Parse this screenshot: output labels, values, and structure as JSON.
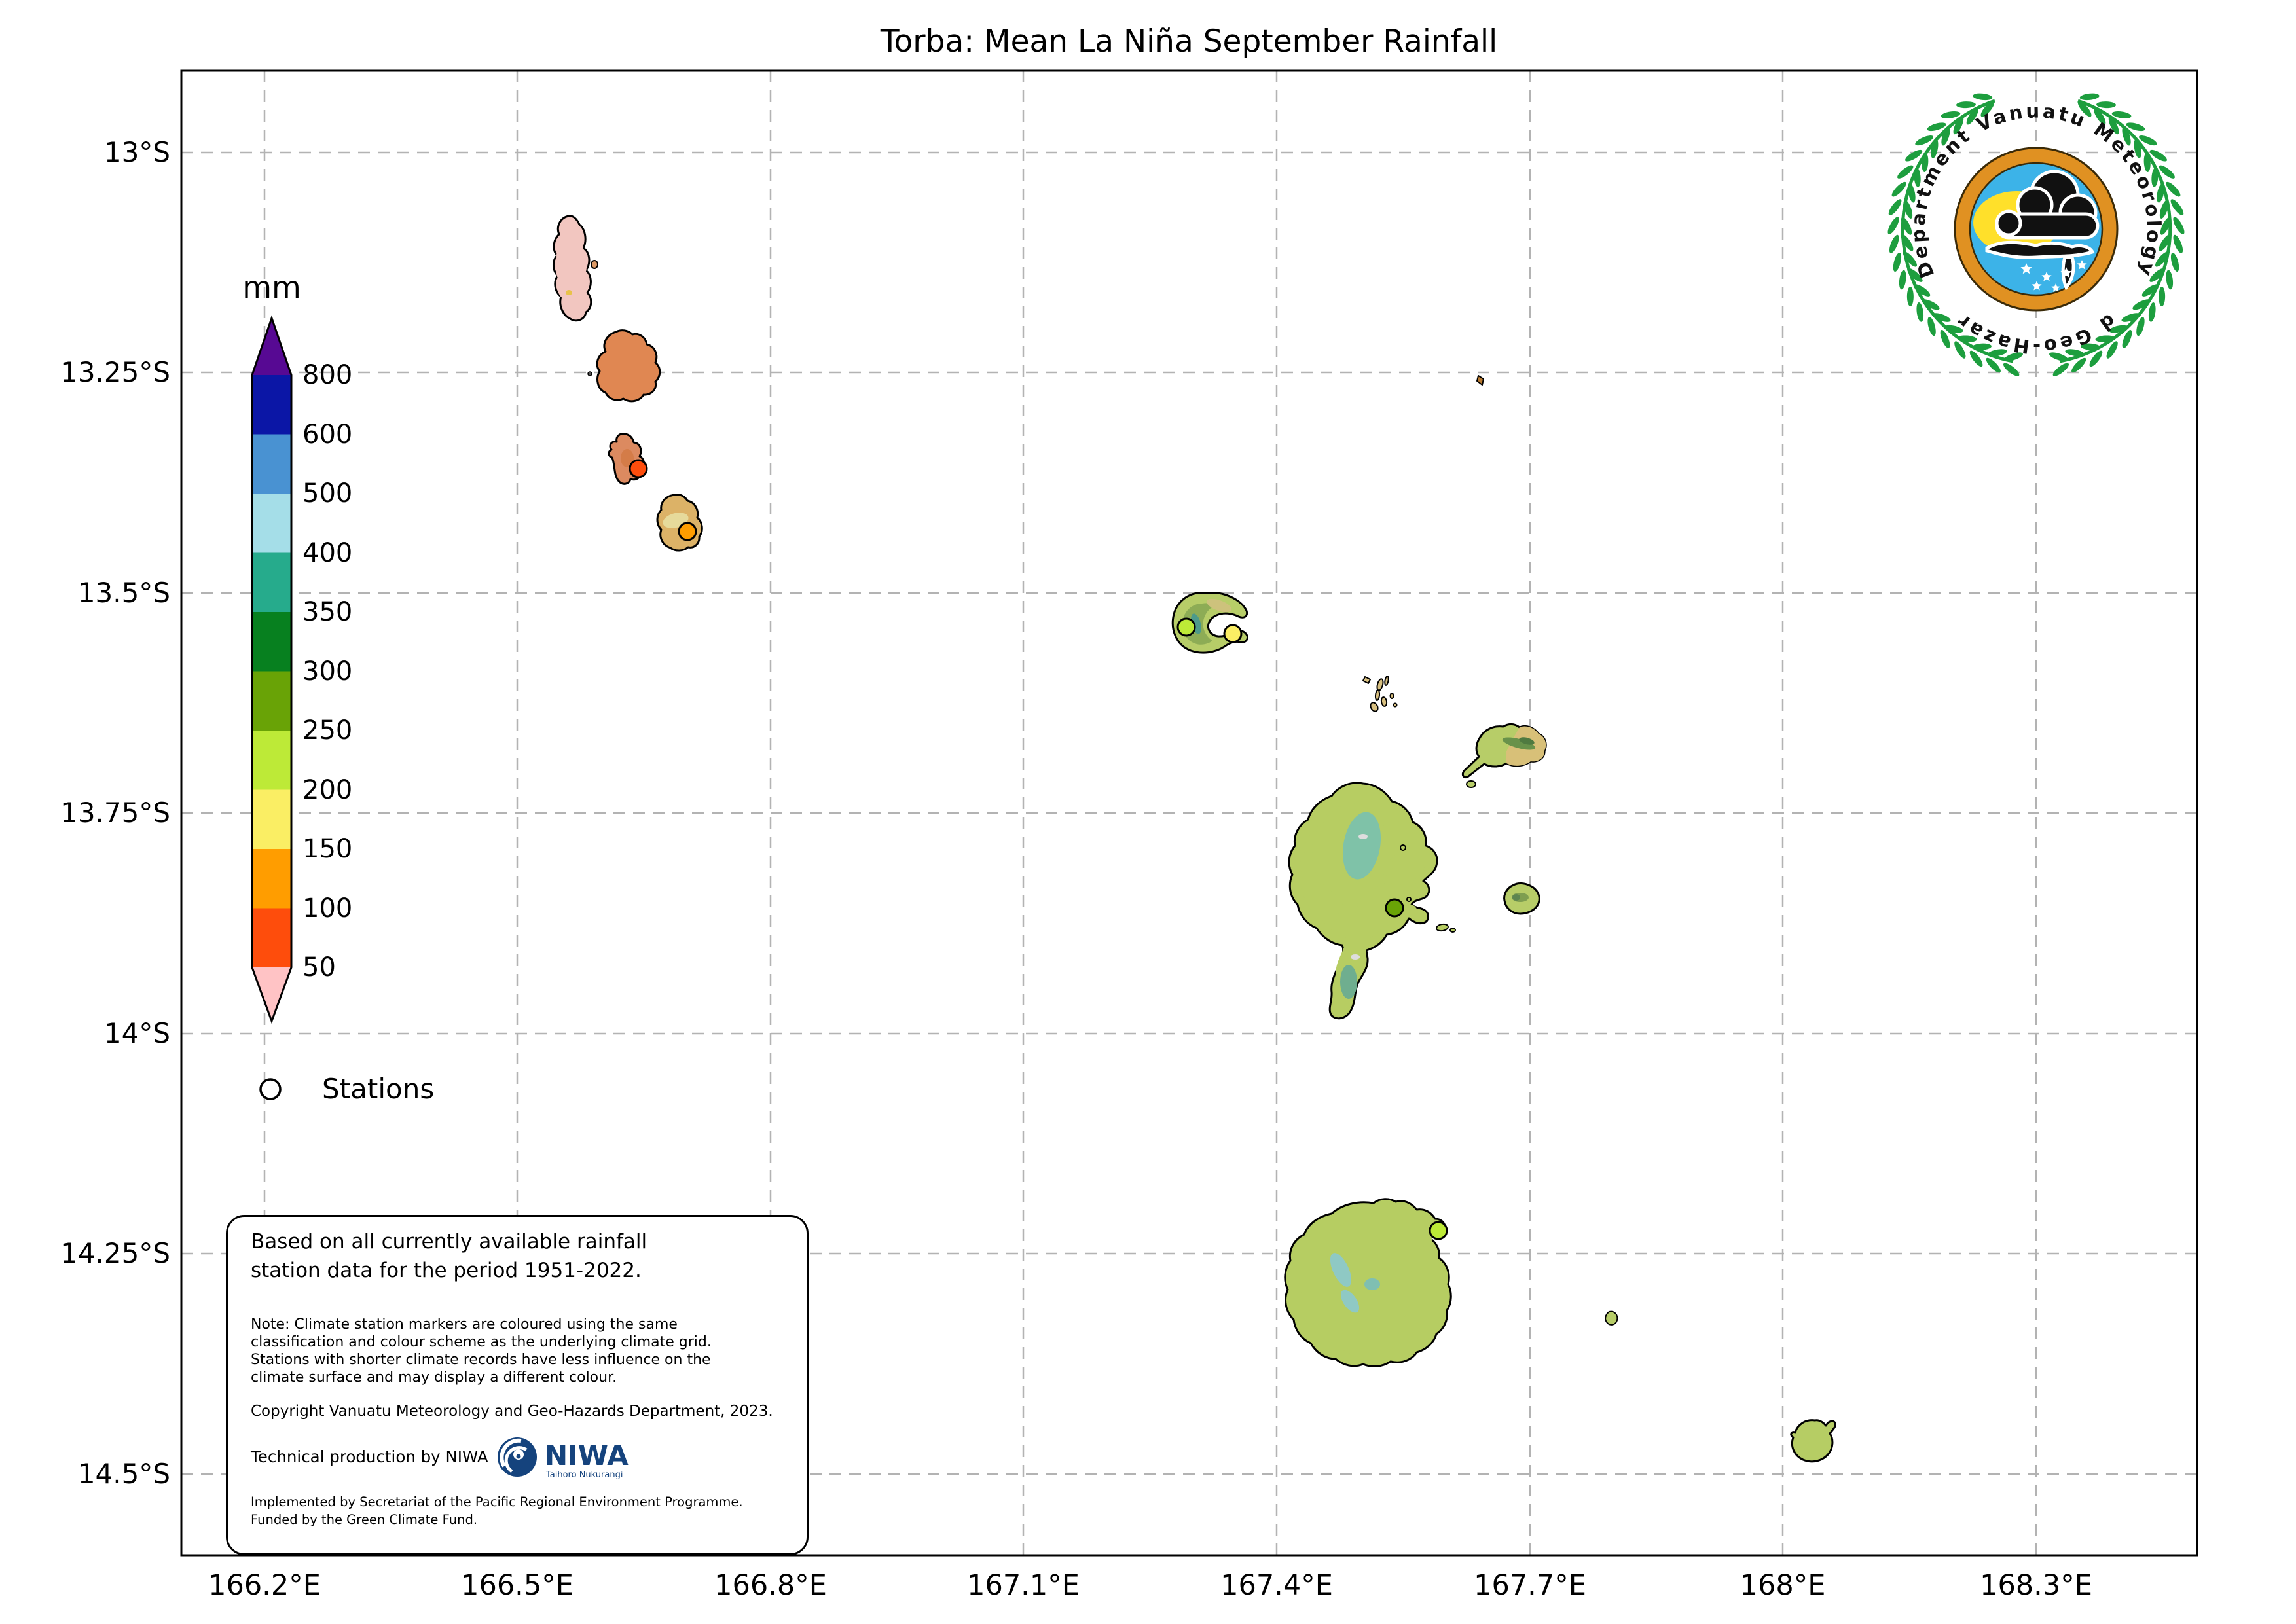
{
  "title": "Torba: Mean La Niña September Rainfall",
  "axes": {
    "lon_ticks": [
      "166.2°E",
      "166.5°E",
      "166.8°E",
      "167.1°E",
      "167.4°E",
      "167.7°E",
      "168°E",
      "168.3°E"
    ],
    "lat_ticks": [
      "13°S",
      "13.25°S",
      "13.5°S",
      "13.75°S",
      "14°S",
      "14.25°S",
      "14.5°S"
    ]
  },
  "legend": {
    "unit": "mm",
    "tick_labels": [
      "800",
      "600",
      "500",
      "400",
      "350",
      "300",
      "250",
      "200",
      "150",
      "100",
      "50"
    ],
    "colors": [
      "#570993",
      "#0b16a6",
      "#4992d2",
      "#a5dee8",
      "#26ab8c",
      "#07801f",
      "#69a306",
      "#bdea37",
      "#faee64",
      "#ff9d00",
      "#fe4d0c",
      "#ffc3c5"
    ],
    "stations_label": "Stations"
  },
  "stations": [
    {
      "id": "station-torres-loh",
      "color": "#fe4d0c"
    },
    {
      "id": "station-torres-toga",
      "color": "#ff9d00"
    },
    {
      "id": "station-ureparapara-west",
      "color": "#bdea37"
    },
    {
      "id": "station-ureparapara-east",
      "color": "#faee64"
    },
    {
      "id": "station-vanua-lava",
      "color": "#69a306"
    },
    {
      "id": "station-gaua",
      "color": "#bdea37"
    }
  ],
  "infobox": {
    "heading_line1": "Based on all currently available rainfall",
    "heading_line2": "station data for the period 1951-2022.",
    "note_line1": "Note: Climate station markers are coloured using the same",
    "note_line2": "classification and colour scheme as the underlying climate grid.",
    "note_line3": "Stations with shorter climate records have less influence on the",
    "note_line4": "climate surface and may display a different colour.",
    "copyright": "Copyright Vanuatu Meteorology and Geo-Hazards Department, 2023.",
    "production": "Technical production by NIWA",
    "implemented_line1": "Implemented by Secretariat of the Pacific Regional Environment Programme.",
    "implemented_line2": "Funded by the Green Climate Fund."
  },
  "niwa": {
    "name": "NIWA",
    "tagline": "Taihoro Nukurangi"
  },
  "vmgd_logo": {
    "arc_top": "Department Vanuatu Meteorology",
    "arc_bottom": "and Geo-Hazards"
  }
}
